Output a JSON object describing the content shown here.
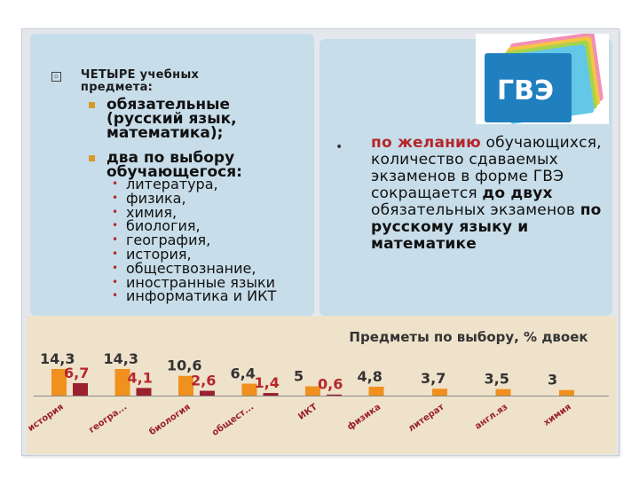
{
  "slide": {
    "heading": "ЧЕТЫРЕ учебных предмета:",
    "mandatory": "обязательные (русский язык, математика);",
    "choice": "два по выбору обучающегося:",
    "subjects": [
      "литература,",
      "физика,",
      "химия,",
      "биология,",
      "география,",
      "история,",
      "обществознание,",
      "иностранные языки",
      "информатика и ИКТ"
    ],
    "right_parts": [
      {
        "text": "по желанию",
        "bold": true,
        "color": "#b5262b"
      },
      {
        "text": " обучающихся, количество сдаваемых экзаменов в форме ГВЭ сокращается ",
        "bold": false
      },
      {
        "text": "до двух",
        "bold": true
      },
      {
        "text": " обязательных экзаменов ",
        "bold": false
      },
      {
        "text": "по русскому языку и математике",
        "bold": true
      }
    ],
    "logo_text": "ГВЭ"
  },
  "colors": {
    "orange": "#f0901e",
    "darkred": "#9b2030",
    "chart_bg": "#efe2ca",
    "label": "#b5262b",
    "accent": "#d79a2a"
  },
  "chart_data": {
    "type": "bar",
    "title": "Предметы по выбору, % двоек",
    "categories": [
      "история",
      "геогра...",
      "биология",
      "общест...",
      "ИКТ",
      "физика",
      "литерат",
      "англ.яз",
      "химия"
    ],
    "values": [
      14.3,
      14.3,
      10.6,
      6.4,
      5,
      4.8,
      3.7,
      3.5,
      3
    ],
    "value_labels": [
      "14,3",
      "14,3",
      "10,6",
      "6,4",
      "5",
      "4,8",
      "3,7",
      "3,5",
      "3"
    ],
    "second_values": [
      6.7,
      4.1,
      2.6,
      1.4,
      0.6
    ],
    "second_labels": [
      "6,7",
      "4,1",
      "2,6",
      "1,4",
      "0,6"
    ],
    "ylim": [
      0,
      16
    ]
  }
}
